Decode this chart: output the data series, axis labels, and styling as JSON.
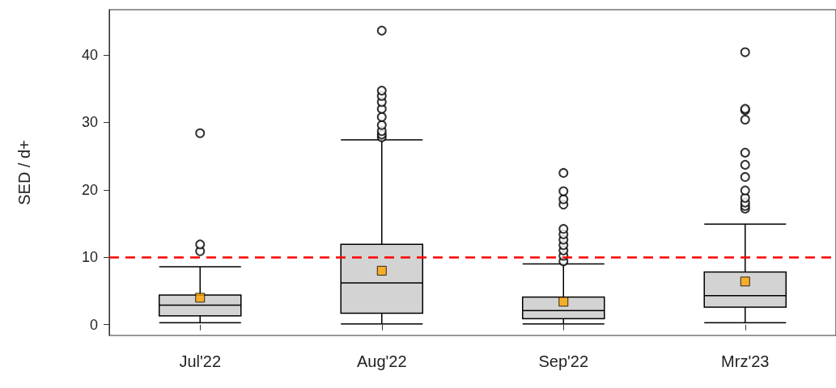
{
  "chart_data": {
    "type": "box",
    "ylabel": "SED / d+",
    "categories": [
      "Jul'22",
      "Aug'22",
      "Sep'22",
      "Mrz'23"
    ],
    "series": [
      {
        "color": "#d3d3d3",
        "boxes": [
          {
            "low": 0.3,
            "q1": 1.3,
            "median": 2.9,
            "q3": 4.4,
            "high": 8.6,
            "mean": 4.0,
            "outliers": [
              10.9,
              11.9,
              28.4
            ]
          },
          {
            "low": 0.1,
            "q1": 1.7,
            "median": 6.2,
            "q3": 11.9,
            "high": 27.4,
            "mean": 8.0,
            "outliers": [
              27.8,
              28.2,
              28.7,
              29.6,
              30.8,
              32.0,
              33.0,
              33.9,
              34.7,
              43.6
            ]
          },
          {
            "low": 0.1,
            "q1": 0.9,
            "median": 2.1,
            "q3": 4.1,
            "high": 9.0,
            "mean": 3.4,
            "outliers": [
              9.4,
              10.2,
              11.0,
              11.8,
              12.6,
              13.4,
              14.2,
              17.8,
              18.6,
              19.8,
              22.5
            ]
          },
          {
            "low": 0.3,
            "q1": 2.6,
            "median": 4.3,
            "q3": 7.8,
            "high": 14.9,
            "mean": 6.4,
            "outliers": [
              17.2,
              17.6,
              18.1,
              18.8,
              19.9,
              21.9,
              23.7,
              25.5,
              30.4,
              31.8,
              32.0,
              40.4
            ]
          }
        ]
      }
    ],
    "ylim": [
      -1.6,
      46.7
    ],
    "yticks": [
      0,
      10,
      20,
      30,
      40
    ],
    "ref_lines": [
      {
        "axis": "y",
        "value": 10,
        "color": "#ff0000",
        "line_style": "dashed"
      }
    ],
    "grid": false
  }
}
